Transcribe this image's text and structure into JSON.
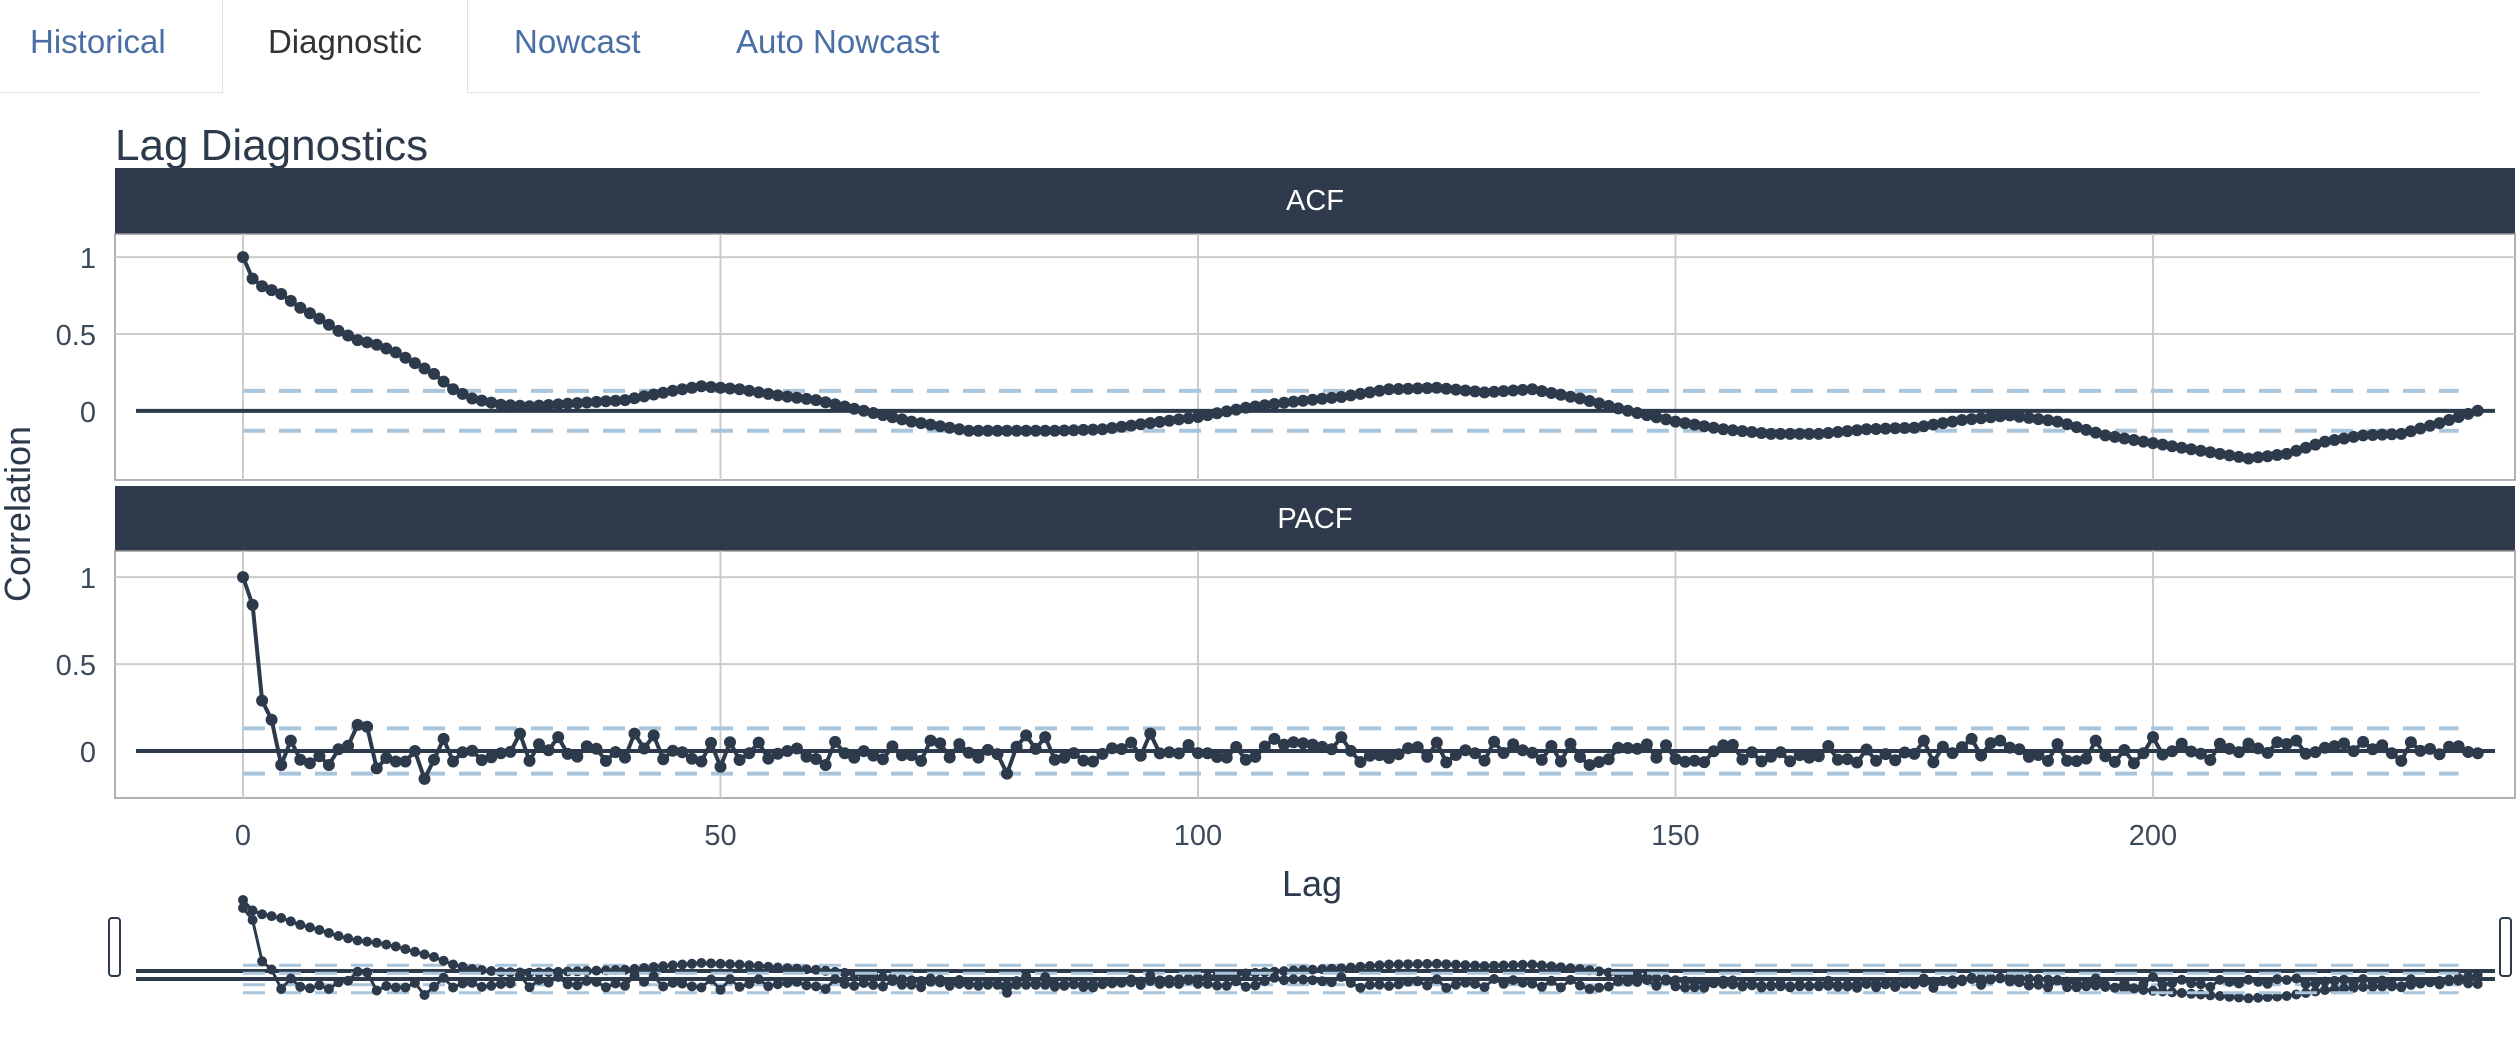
{
  "tabs": [
    {
      "label": "Historical",
      "active": false
    },
    {
      "label": "Diagnostic",
      "active": true
    },
    {
      "label": "Nowcast",
      "active": false
    },
    {
      "label": "Auto Nowcast",
      "active": false
    }
  ],
  "plot": {
    "title": "Lag Diagnostics",
    "ylabel": "Correlation",
    "xlabel": "Lag",
    "x_ticks": [
      0,
      50,
      100,
      150,
      200
    ],
    "colors": {
      "series": "#2c3a4b",
      "strip_bg": "#2f3b4c",
      "strip_text": "#ffffff",
      "confidence": "#a9c5dc",
      "grid": "#cccccc",
      "zero_line": "#2c3a4b",
      "axis_text": "#3d4a5a"
    }
  },
  "chart_data": [
    {
      "type": "line",
      "panel": "ACF",
      "title": "ACF",
      "xlabel": "Lag",
      "ylabel": "Correlation",
      "x_range": [
        0,
        234
      ],
      "ylim": [
        -0.45,
        1.15
      ],
      "y_ticks": [
        0,
        0.5,
        1
      ],
      "confidence_band": [
        -0.13,
        0.13
      ],
      "markers": true,
      "knots": [
        [
          0,
          1.0
        ],
        [
          1,
          0.86
        ],
        [
          2,
          0.81
        ],
        [
          4,
          0.76
        ],
        [
          6,
          0.67
        ],
        [
          8,
          0.6
        ],
        [
          10,
          0.52
        ],
        [
          12,
          0.46
        ],
        [
          14,
          0.43
        ],
        [
          16,
          0.38
        ],
        [
          18,
          0.31
        ],
        [
          20,
          0.24
        ],
        [
          22,
          0.14
        ],
        [
          24,
          0.08
        ],
        [
          27,
          0.04
        ],
        [
          30,
          0.03
        ],
        [
          35,
          0.05
        ],
        [
          40,
          0.07
        ],
        [
          45,
          0.13
        ],
        [
          48,
          0.16
        ],
        [
          52,
          0.14
        ],
        [
          56,
          0.1
        ],
        [
          60,
          0.07
        ],
        [
          65,
          0.0
        ],
        [
          70,
          -0.07
        ],
        [
          76,
          -0.13
        ],
        [
          80,
          -0.13
        ],
        [
          85,
          -0.13
        ],
        [
          90,
          -0.12
        ],
        [
          95,
          -0.08
        ],
        [
          100,
          -0.04
        ],
        [
          105,
          0.02
        ],
        [
          110,
          0.06
        ],
        [
          115,
          0.09
        ],
        [
          120,
          0.14
        ],
        [
          125,
          0.15
        ],
        [
          130,
          0.12
        ],
        [
          135,
          0.14
        ],
        [
          140,
          0.08
        ],
        [
          145,
          0.0
        ],
        [
          150,
          -0.07
        ],
        [
          155,
          -0.12
        ],
        [
          160,
          -0.15
        ],
        [
          165,
          -0.15
        ],
        [
          170,
          -0.12
        ],
        [
          175,
          -0.11
        ],
        [
          180,
          -0.06
        ],
        [
          185,
          -0.03
        ],
        [
          190,
          -0.07
        ],
        [
          195,
          -0.16
        ],
        [
          200,
          -0.21
        ],
        [
          205,
          -0.26
        ],
        [
          210,
          -0.31
        ],
        [
          214,
          -0.28
        ],
        [
          218,
          -0.2
        ],
        [
          222,
          -0.16
        ],
        [
          226,
          -0.15
        ],
        [
          230,
          -0.08
        ],
        [
          234,
          0.0
        ]
      ]
    },
    {
      "type": "line",
      "panel": "PACF",
      "title": "PACF",
      "xlabel": "Lag",
      "ylabel": "Correlation",
      "x_range": [
        0,
        234
      ],
      "ylim": [
        -0.27,
        1.15
      ],
      "y_ticks": [
        0,
        0.5,
        1
      ],
      "confidence_band": [
        -0.13,
        0.13
      ],
      "markers": true,
      "head": [
        [
          0,
          1.0
        ],
        [
          1,
          0.84
        ],
        [
          2,
          0.29
        ],
        [
          3,
          0.18
        ],
        [
          4,
          -0.08
        ],
        [
          5,
          0.06
        ],
        [
          6,
          -0.05
        ],
        [
          7,
          -0.07
        ],
        [
          8,
          -0.03
        ],
        [
          9,
          -0.08
        ],
        [
          10,
          0.01
        ],
        [
          11,
          0.03
        ],
        [
          12,
          0.15
        ],
        [
          13,
          0.14
        ],
        [
          14,
          -0.1
        ],
        [
          15,
          -0.04
        ],
        [
          16,
          -0.06
        ],
        [
          17,
          -0.06
        ],
        [
          18,
          0.0
        ],
        [
          19,
          -0.16
        ],
        [
          20,
          -0.05
        ],
        [
          21,
          0.07
        ],
        [
          22,
          -0.06
        ]
      ],
      "noise_amplitude": 0.06,
      "spikes": [
        [
          29,
          0.1
        ],
        [
          33,
          0.08
        ],
        [
          41,
          0.1
        ],
        [
          43,
          0.09
        ],
        [
          50,
          -0.09
        ],
        [
          61,
          -0.08
        ],
        [
          72,
          0.06
        ],
        [
          80,
          -0.13
        ],
        [
          82,
          0.09
        ],
        [
          84,
          0.08
        ],
        [
          95,
          0.1
        ],
        [
          108,
          0.07
        ],
        [
          115,
          0.08
        ],
        [
          138,
          -0.06
        ],
        [
          141,
          -0.08
        ],
        [
          176,
          0.06
        ],
        [
          181,
          0.07
        ],
        [
          184,
          0.06
        ],
        [
          194,
          0.06
        ],
        [
          198,
          -0.07
        ],
        [
          200,
          0.08
        ],
        [
          215,
          0.06
        ]
      ]
    }
  ]
}
